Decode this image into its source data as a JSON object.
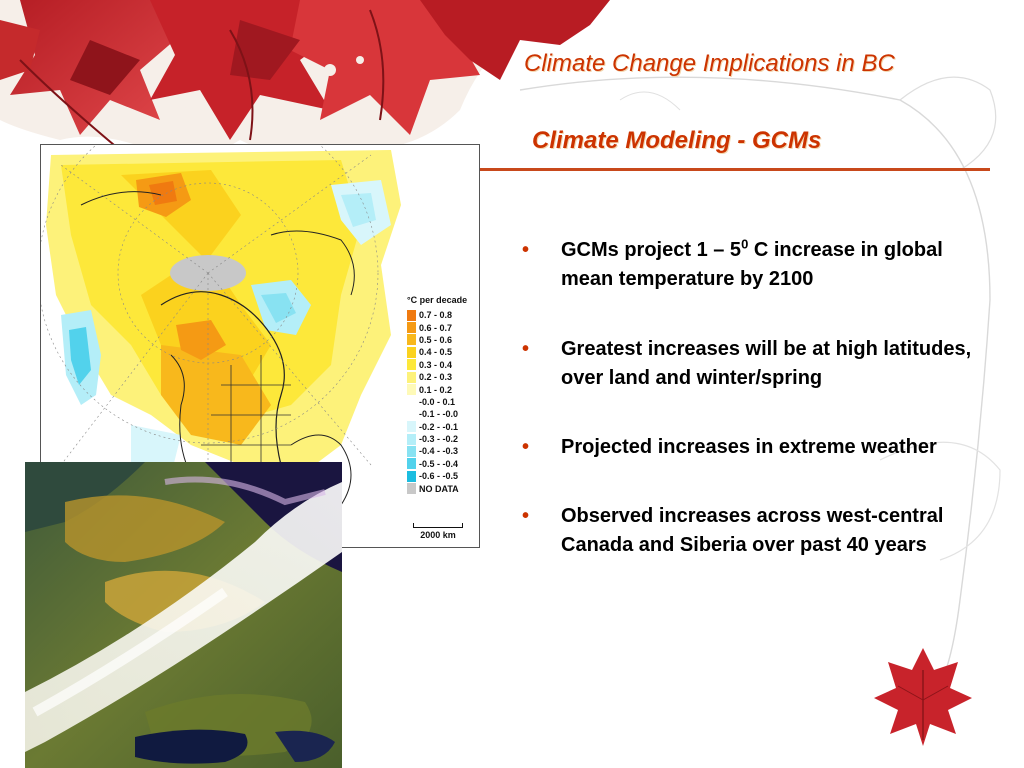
{
  "slide": {
    "title": "Climate Change Implications in BC",
    "subtitle": "Climate Modeling - GCMs"
  },
  "bullets": [
    {
      "pre": "GCMs project 1 – 5",
      "sup": "0",
      "post": " C increase in global mean temperature by 2100"
    },
    {
      "text": "Greatest increases will be at high latitudes, over land and winter/spring"
    },
    {
      "text": "Projected increases in extreme weather"
    },
    {
      "text": "Observed increases across west-central Canada and Siberia over past 40 years"
    }
  ],
  "bullet_symbol": "•",
  "map": {
    "legend_title": "°C per decade",
    "legend": [
      {
        "label": "0.7 -  0.8",
        "color": "#f07a10"
      },
      {
        "label": "0.6 -  0.7",
        "color": "#f59a14"
      },
      {
        "label": "0.5 -  0.6",
        "color": "#f8b81c"
      },
      {
        "label": "0.4 -  0.5",
        "color": "#fbd21e"
      },
      {
        "label": "0.3 -  0.4",
        "color": "#fde83a"
      },
      {
        "label": "0.2 -  0.3",
        "color": "#fdf27a"
      },
      {
        "label": "0.1 -  0.2",
        "color": "#fefab8"
      },
      {
        "label": "-0.0 -  0.1",
        "color": "#ffffff"
      },
      {
        "label": "-0.1 - -0.0",
        "color": "#ffffff"
      },
      {
        "label": "-0.2 - -0.1",
        "color": "#d8f6fb"
      },
      {
        "label": "-0.3 - -0.2",
        "color": "#b4eef8"
      },
      {
        "label": "-0.4 - -0.3",
        "color": "#88e2f2"
      },
      {
        "label": "-0.5 - -0.4",
        "color": "#52d2ec"
      },
      {
        "label": "-0.6 - -0.5",
        "color": "#1cbde0"
      },
      {
        "label": "NO DATA",
        "color": "#c8c8c8"
      }
    ],
    "scale_label": "2000 km"
  },
  "colors": {
    "title": "#cc3300",
    "rule": "#c8491b",
    "bullet": "#cc3300",
    "leaf": "#c8232b"
  }
}
